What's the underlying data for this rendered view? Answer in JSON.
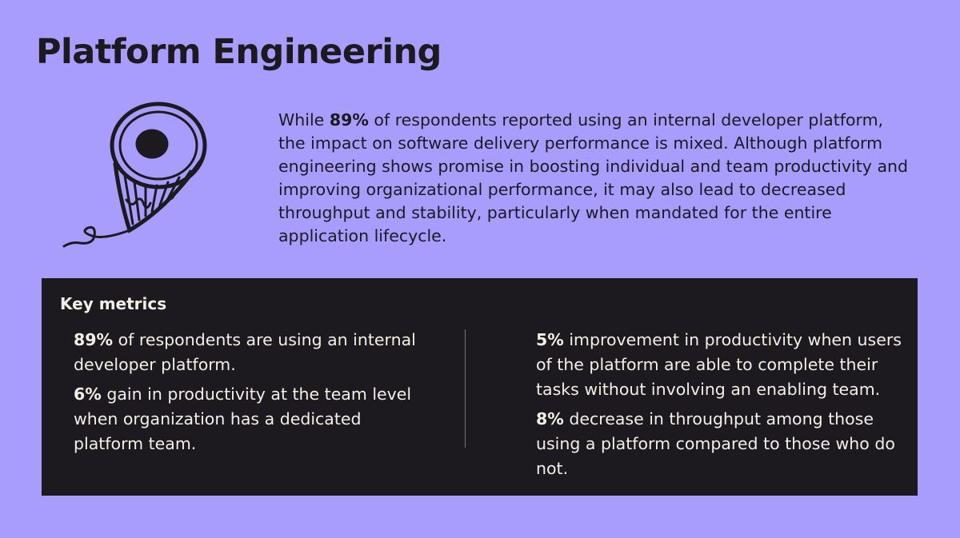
{
  "title": "Platform Engineering",
  "intro": {
    "before": "While",
    "bold": "89%",
    "after": "of respondents reported using an internal developer platform, the impact on software delivery performance is mixed. Although platform engineering shows promise in boosting individual and team productivity and improving organizational performance, it may also lead to decreased throughput and stability, particularly when mandated for the entire application lifecycle."
  },
  "metrics": {
    "heading": "Key metrics",
    "left": [
      {
        "bold": "89%",
        "text": "of respondents are using an internal developer platform."
      },
      {
        "bold": "6%",
        "text": "gain in productivity at the team level when organization has a dedicated platform team."
      }
    ],
    "right": [
      {
        "bold": "5%",
        "text": "improvement in productivity when users of the platform are able to complete their tasks without involving an enabling team."
      },
      {
        "bold": "8%",
        "text": "decrease in throughput among those using a platform compared to those who do not."
      }
    ]
  }
}
